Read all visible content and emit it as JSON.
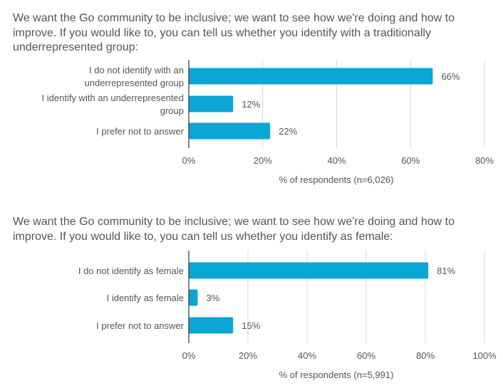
{
  "chart_data": [
    {
      "type": "bar",
      "orientation": "horizontal",
      "title": "We want the Go community to be inclusive; we want to see how we're doing and how to improve. If you would like to, you can tell us whether you identify with a traditionally underrepresented group:",
      "categories": [
        "I do not identify with an underrepresented group",
        "I identify with an underrepresented group",
        "I prefer not to answer"
      ],
      "category_lines": [
        [
          "I do not identify with an",
          "underrepresented group"
        ],
        [
          "I identify with an underrepresented",
          "group"
        ],
        [
          "I prefer not to answer"
        ]
      ],
      "values": [
        66,
        12,
        22
      ],
      "data_labels": [
        "66%",
        "12%",
        "22%"
      ],
      "xlim": [
        0,
        80
      ],
      "ticks": [
        0,
        20,
        40,
        60,
        80
      ],
      "tick_labels": [
        "0%",
        "20%",
        "40%",
        "60%",
        "80%"
      ],
      "xlabel": "% of respondents (n=6,026)",
      "ylabel": "",
      "grid": true,
      "color": "#0ba5d6"
    },
    {
      "type": "bar",
      "orientation": "horizontal",
      "title": "We want the Go community to be inclusive; we want to see how we're doing and how to improve. If you would like to, you can tell us whether you identify as female:",
      "categories": [
        "I do not identify as female",
        "I identify as female",
        "I prefer not to answer"
      ],
      "category_lines": [
        [
          "I do not identify as female"
        ],
        [
          "I identify as female"
        ],
        [
          "I prefer not to answer"
        ]
      ],
      "values": [
        81,
        3,
        15
      ],
      "data_labels": [
        "81%",
        "3%",
        "15%"
      ],
      "xlim": [
        0,
        100
      ],
      "ticks": [
        0,
        20,
        40,
        60,
        80,
        100
      ],
      "tick_labels": [
        "0%",
        "20%",
        "40%",
        "60%",
        "80%",
        "100%"
      ],
      "xlabel": "% of respondents (n=5,991)",
      "ylabel": "",
      "grid": true,
      "color": "#0ba5d6"
    }
  ]
}
